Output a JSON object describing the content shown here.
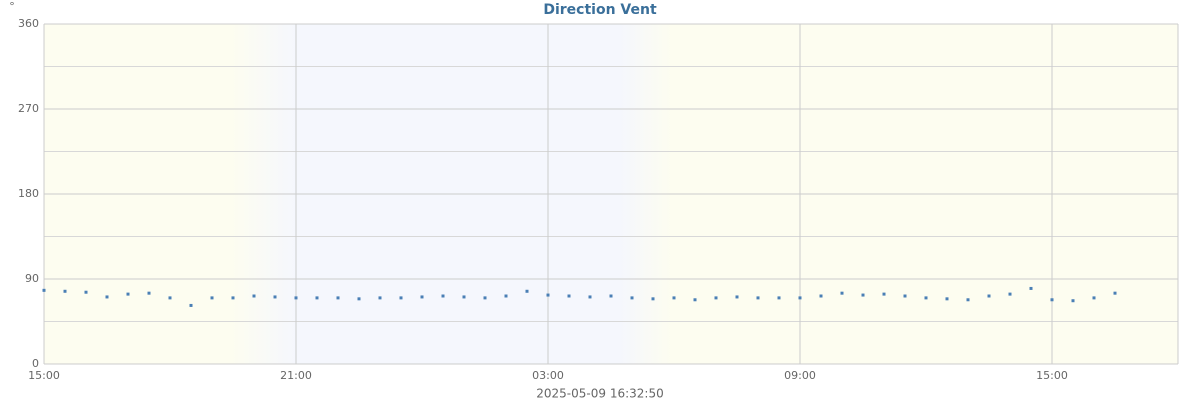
{
  "chart_data": {
    "type": "scatter",
    "title": "Direction Vent",
    "unit_label": "°",
    "footer": "2025-05-09 16:32:50",
    "color": "#4a7fb5",
    "x": [
      0,
      0.5,
      1,
      1.5,
      2,
      2.5,
      3,
      3.5,
      4,
      4.5,
      5,
      5.5,
      6,
      6.5,
      7,
      7.5,
      8,
      8.5,
      9,
      9.5,
      10,
      10.5,
      11,
      11.5,
      12,
      12.5,
      13,
      13.5,
      14,
      14.5,
      15,
      15.5,
      16,
      16.5,
      17,
      17.5,
      18,
      18.5,
      19,
      19.5,
      20,
      20.5,
      21,
      21.5,
      22,
      22.5,
      23,
      23.5,
      24,
      24.5,
      25,
      25.5
    ],
    "values": [
      78,
      77,
      76,
      71,
      74,
      75,
      70,
      62,
      70,
      70,
      72,
      71,
      70,
      70,
      70,
      69,
      70,
      70,
      71,
      72,
      71,
      70,
      72,
      77,
      73,
      72,
      71,
      72,
      70,
      69,
      70,
      68,
      70,
      71,
      70,
      70,
      70,
      72,
      75,
      73,
      74,
      72,
      70,
      69,
      68,
      72,
      74,
      80,
      68,
      67,
      70,
      75
    ],
    "xlim": [
      0,
      27
    ],
    "xticks": [
      {
        "value": 0,
        "label": "15:00"
      },
      {
        "value": 6,
        "label": "21:00"
      },
      {
        "value": 12,
        "label": "03:00"
      },
      {
        "value": 18,
        "label": "09:00"
      },
      {
        "value": 24,
        "label": "15:00"
      }
    ],
    "ylim": [
      0,
      360
    ],
    "yticks": [
      0,
      90,
      180,
      270,
      360
    ],
    "y_minor_ticks": [
      45,
      135,
      225,
      315
    ],
    "grid": true
  }
}
